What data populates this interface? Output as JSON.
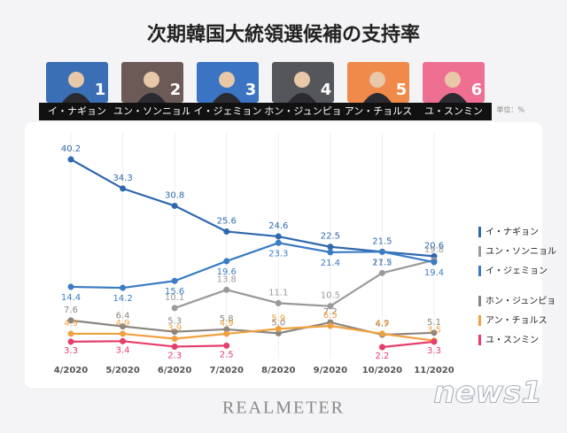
{
  "chart_data": {
    "type": "line",
    "title": "次期韓国大統領選候補の支持率",
    "unit_label": "単位：%",
    "source": "REALMETER",
    "cards": [
      {
        "number": "1",
        "name": "イ・ナギョン",
        "color": "#3a6fb5"
      },
      {
        "number": "2",
        "name": "ユン・ソンニョル",
        "color": "#6b5a55"
      },
      {
        "number": "3",
        "name": "イ・ジェミョン",
        "color": "#3a74c2"
      },
      {
        "number": "4",
        "name": "ホン・ジュンピョ",
        "color": "#55565c"
      },
      {
        "number": "5",
        "name": "アン・チョルス",
        "color": "#ef8a4a"
      },
      {
        "number": "6",
        "name": "ユ・スンミン",
        "color": "#ef6f92"
      }
    ],
    "categories": [
      "4/2020",
      "5/2020",
      "6/2020",
      "7/2020",
      "8/2020",
      "9/2020",
      "10/2020",
      "11/2020"
    ],
    "series": [
      {
        "name": "イ・ナギョン",
        "color": "#2f68ad",
        "values": [
          40.2,
          34.3,
          30.8,
          25.6,
          24.6,
          22.5,
          21.5,
          20.6
        ]
      },
      {
        "name": "ユン・ソンニョル",
        "color": "#9a9a9a",
        "values": [
          null,
          null,
          10.1,
          13.8,
          11.1,
          10.5,
          17.2,
          19.8
        ]
      },
      {
        "name": "イ・ジェミョン",
        "color": "#3b7cc4",
        "values": [
          14.4,
          14.2,
          15.6,
          19.6,
          23.3,
          21.4,
          21.5,
          19.4
        ]
      },
      {
        "name": "ホン・ジュンピョ",
        "color": "#8a8580",
        "values": [
          7.6,
          6.4,
          5.3,
          5.8,
          5.0,
          7.2,
          4.7,
          5.1
        ],
        "value_labels": [
          "7.6",
          "6.4",
          "5.3",
          "5.8",
          "5.0",
          "7.2",
          "4.7",
          "5.1"
        ]
      },
      {
        "name": "アン・チョルス",
        "color": "#f0a040",
        "values": [
          4.9,
          4.9,
          3.9,
          4.9,
          5.9,
          6.5,
          4.9,
          3.5
        ]
      },
      {
        "name": "ユ・スンミン",
        "color": "#e53e6c",
        "values": [
          3.3,
          3.4,
          2.3,
          2.5,
          null,
          null,
          2.2,
          3.3
        ]
      }
    ]
  },
  "watermark": "news1"
}
